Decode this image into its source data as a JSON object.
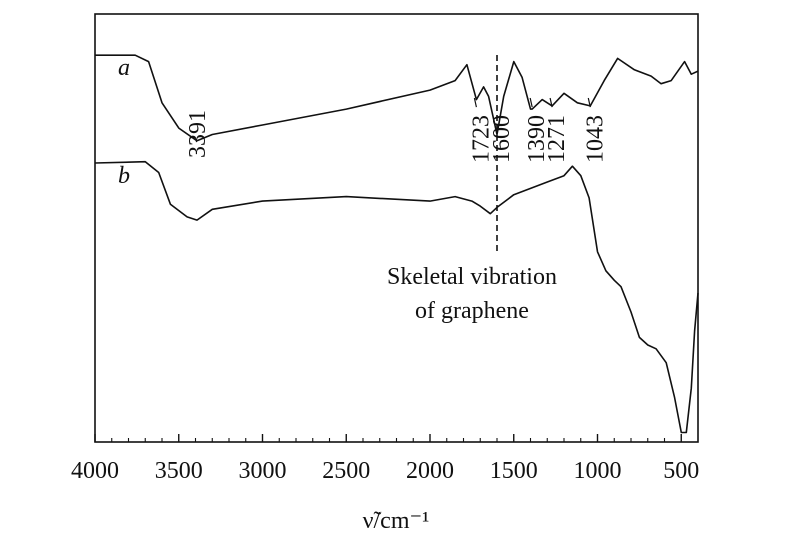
{
  "chart_data": {
    "type": "line",
    "xlabel": "ν̃/cm⁻¹",
    "xlim": [
      4000,
      400
    ],
    "x_reversed": true,
    "ylabel": "",
    "y_ticks": false,
    "grid": false,
    "legend": "none",
    "x_ticks": [
      {
        "value": 4000,
        "label": "4000"
      },
      {
        "value": 3500,
        "label": "3500"
      },
      {
        "value": 3000,
        "label": "3000"
      },
      {
        "value": 2500,
        "label": "2500"
      },
      {
        "value": 2000,
        "label": "2000"
      },
      {
        "value": 1500,
        "label": "1500"
      },
      {
        "value": 1000,
        "label": "1000"
      },
      {
        "value": 500,
        "label": "500"
      }
    ],
    "series": [
      {
        "name": "a",
        "color": "#111111",
        "points": [
          [
            4000,
            4.95
          ],
          [
            3760,
            4.95
          ],
          [
            3680,
            4.85
          ],
          [
            3600,
            4.2
          ],
          [
            3500,
            3.8
          ],
          [
            3391,
            3.6
          ],
          [
            3300,
            3.7
          ],
          [
            3000,
            3.85
          ],
          [
            2500,
            4.1
          ],
          [
            2000,
            4.4
          ],
          [
            1850,
            4.55
          ],
          [
            1780,
            4.8
          ],
          [
            1723,
            4.25
          ],
          [
            1680,
            4.45
          ],
          [
            1650,
            4.3
          ],
          [
            1600,
            3.7
          ],
          [
            1560,
            4.3
          ],
          [
            1500,
            4.85
          ],
          [
            1450,
            4.6
          ],
          [
            1400,
            4.1
          ],
          [
            1390,
            4.1
          ],
          [
            1330,
            4.25
          ],
          [
            1271,
            4.15
          ],
          [
            1200,
            4.35
          ],
          [
            1120,
            4.2
          ],
          [
            1043,
            4.15
          ],
          [
            960,
            4.55
          ],
          [
            880,
            4.9
          ],
          [
            780,
            4.72
          ],
          [
            680,
            4.62
          ],
          [
            620,
            4.5
          ],
          [
            560,
            4.55
          ],
          [
            480,
            4.85
          ],
          [
            440,
            4.65
          ],
          [
            400,
            4.7
          ]
        ]
      },
      {
        "name": "b",
        "color": "#111111",
        "points": [
          [
            4000,
            3.25
          ],
          [
            3700,
            3.27
          ],
          [
            3620,
            3.1
          ],
          [
            3550,
            2.6
          ],
          [
            3450,
            2.4
          ],
          [
            3391,
            2.35
          ],
          [
            3300,
            2.52
          ],
          [
            3000,
            2.65
          ],
          [
            2500,
            2.72
          ],
          [
            2000,
            2.65
          ],
          [
            1850,
            2.72
          ],
          [
            1750,
            2.65
          ],
          [
            1700,
            2.57
          ],
          [
            1640,
            2.45
          ],
          [
            1600,
            2.55
          ],
          [
            1500,
            2.75
          ],
          [
            1300,
            2.95
          ],
          [
            1200,
            3.05
          ],
          [
            1150,
            3.2
          ],
          [
            1100,
            3.05
          ],
          [
            1050,
            2.7
          ],
          [
            1000,
            1.85
          ],
          [
            950,
            1.55
          ],
          [
            900,
            1.4
          ],
          [
            860,
            1.3
          ],
          [
            800,
            0.9
          ],
          [
            750,
            0.5
          ],
          [
            700,
            0.38
          ],
          [
            650,
            0.32
          ],
          [
            590,
            0.1
          ],
          [
            540,
            -0.45
          ],
          [
            500,
            -1.0
          ],
          [
            470,
            -1.0
          ],
          [
            440,
            -0.3
          ],
          [
            420,
            0.6
          ],
          [
            400,
            1.2
          ]
        ]
      }
    ],
    "annotations": [
      {
        "text": "3391",
        "x": 3391
      },
      {
        "text": "1723",
        "x": 1723
      },
      {
        "text": "1600",
        "x": 1600
      },
      {
        "text": "1390",
        "x": 1390
      },
      {
        "text": "1271",
        "x": 1271
      },
      {
        "text": "1043",
        "x": 1043
      }
    ],
    "dashed_marker": {
      "x": 1600,
      "label_lines": [
        "Skeletal vibration",
        "of graphene"
      ]
    }
  }
}
